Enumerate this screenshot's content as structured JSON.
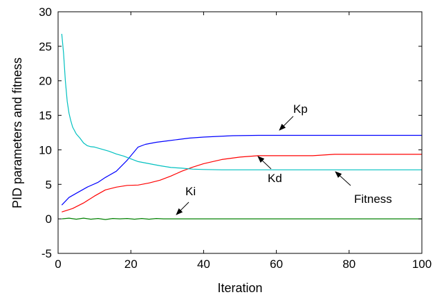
{
  "chart_data": {
    "type": "line",
    "title": "",
    "xlabel": "Iteration",
    "ylabel": "PID parameters and fitness",
    "xlim": [
      0,
      100
    ],
    "ylim": [
      -5,
      30
    ],
    "xticks": [
      0,
      20,
      40,
      60,
      80,
      100
    ],
    "yticks": [
      -5,
      0,
      5,
      10,
      15,
      20,
      25,
      30
    ],
    "grid": false,
    "legend": "none",
    "series": [
      {
        "name": "Kp",
        "color": "#0000ff",
        "x": [
          1,
          3,
          5,
          8,
          11,
          13,
          16,
          19,
          22,
          24,
          27,
          30,
          33,
          36,
          40,
          44,
          48,
          55,
          60,
          70,
          80,
          90,
          100
        ],
        "y": [
          2.0,
          3.1,
          3.7,
          4.6,
          5.3,
          6.0,
          6.9,
          8.5,
          10.4,
          10.8,
          11.1,
          11.3,
          11.5,
          11.7,
          11.85,
          11.95,
          12.05,
          12.1,
          12.1,
          12.1,
          12.1,
          12.1,
          12.1
        ]
      },
      {
        "name": "Kd",
        "color": "#ff0000",
        "x": [
          1,
          4,
          7,
          10,
          13,
          16,
          19,
          22,
          25,
          28,
          31,
          34,
          37,
          40,
          45,
          50,
          55,
          60,
          70,
          76,
          80,
          90,
          100
        ],
        "y": [
          1.0,
          1.5,
          2.3,
          3.3,
          4.2,
          4.6,
          4.85,
          4.9,
          5.2,
          5.6,
          6.2,
          6.9,
          7.5,
          8.0,
          8.6,
          8.95,
          9.15,
          9.15,
          9.15,
          9.35,
          9.35,
          9.35,
          9.35
        ]
      },
      {
        "name": "Ki",
        "color": "#008000",
        "x": [
          1,
          3,
          5,
          7,
          9,
          11,
          13,
          15,
          17,
          19,
          21,
          23,
          25,
          27,
          29,
          31,
          35,
          40,
          50,
          60,
          70,
          80,
          90,
          100
        ],
        "y": [
          0.0,
          0.1,
          -0.05,
          0.1,
          -0.05,
          0.05,
          -0.1,
          0.05,
          0.0,
          0.05,
          -0.05,
          0.05,
          -0.05,
          0.05,
          0.0,
          0.0,
          0.0,
          0.0,
          0.0,
          0.0,
          0.0,
          0.0,
          0.0,
          0.0
        ]
      },
      {
        "name": "Fitness",
        "color": "#00c0c0",
        "x": [
          1,
          1.5,
          2,
          2.5,
          3,
          3.5,
          4,
          5,
          6,
          7,
          8,
          9,
          10,
          12,
          14,
          16,
          18,
          20,
          22,
          25,
          28,
          31,
          34,
          37,
          40,
          45,
          50,
          60,
          70,
          80,
          90,
          100
        ],
        "y": [
          26.8,
          24.0,
          20.0,
          17.0,
          15.3,
          14.2,
          13.3,
          12.3,
          11.7,
          11.0,
          10.6,
          10.45,
          10.4,
          10.1,
          9.8,
          9.4,
          9.1,
          8.7,
          8.3,
          8.0,
          7.7,
          7.45,
          7.35,
          7.2,
          7.15,
          7.1,
          7.1,
          7.1,
          7.1,
          7.1,
          7.1,
          7.1
        ]
      }
    ],
    "annotations": [
      {
        "text": "Kp",
        "color": "#000000"
      },
      {
        "text": "Kd",
        "color": "#000000"
      },
      {
        "text": "Ki",
        "color": "#000000"
      },
      {
        "text": "Fitness",
        "color": "#000000"
      }
    ]
  }
}
